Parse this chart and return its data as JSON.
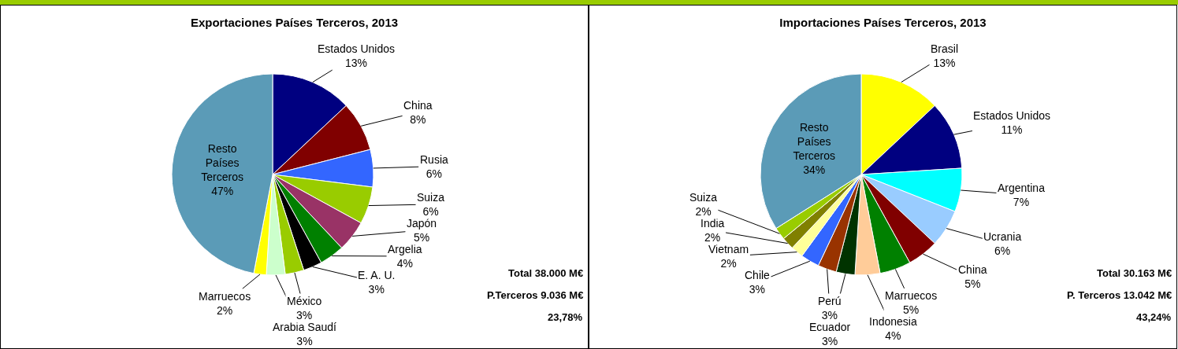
{
  "chart_data": [
    {
      "type": "pie",
      "title": "Exportaciones Países Terceros, 2013",
      "categories": [
        "Estados Unidos",
        "China",
        "Rusia",
        "Suiza",
        "Japón",
        "Argelia",
        "E. A. U.",
        "México",
        "Arabia Saudí",
        "Marruecos",
        "Resto Países Terceros"
      ],
      "values": [
        13,
        8,
        6,
        6,
        5,
        4,
        3,
        3,
        3,
        2,
        47
      ],
      "value_labels": [
        "13%",
        "8%",
        "6%",
        "6%",
        "5%",
        "4%",
        "3%",
        "3%",
        "3%",
        "2%",
        "47%"
      ],
      "colors": [
        "#000080",
        "#800000",
        "#3366ff",
        "#99cc00",
        "#993366",
        "#008000",
        "#000000",
        "#99cc00",
        "#ccffcc",
        "#ffff00",
        "#5b9bb7"
      ],
      "annotations": [
        "Total 38.000 M€",
        "P.Terceros 9.036 M€",
        "23,78%"
      ]
    },
    {
      "type": "pie",
      "title": "Importaciones Países Terceros, 2013",
      "categories": [
        "Brasil",
        "Estados Unidos",
        "Argentina",
        "Ucrania",
        "China",
        "Marruecos",
        "Indonesia",
        "Ecuador",
        "Perú",
        "Chile",
        "Vietnam",
        "India",
        "Suiza",
        "Resto Países Terceros"
      ],
      "values": [
        13,
        11,
        7,
        6,
        5,
        5,
        4,
        3,
        3,
        3,
        2,
        2,
        2,
        34
      ],
      "value_labels": [
        "13%",
        "11%",
        "7%",
        "6%",
        "5%",
        "5%",
        "4%",
        "3%",
        "3%",
        "3%",
        "2%",
        "2%",
        "2%",
        "34%"
      ],
      "colors": [
        "#ffff00",
        "#000080",
        "#00ffff",
        "#99ccff",
        "#800000",
        "#008000",
        "#ffcc99",
        "#003300",
        "#993300",
        "#3366ff",
        "#ffff99",
        "#808000",
        "#99cc00",
        "#5b9bb7"
      ],
      "annotations": [
        "Total 30.163 M€",
        "P. Terceros 13.042 M€",
        "43,24%"
      ]
    }
  ]
}
